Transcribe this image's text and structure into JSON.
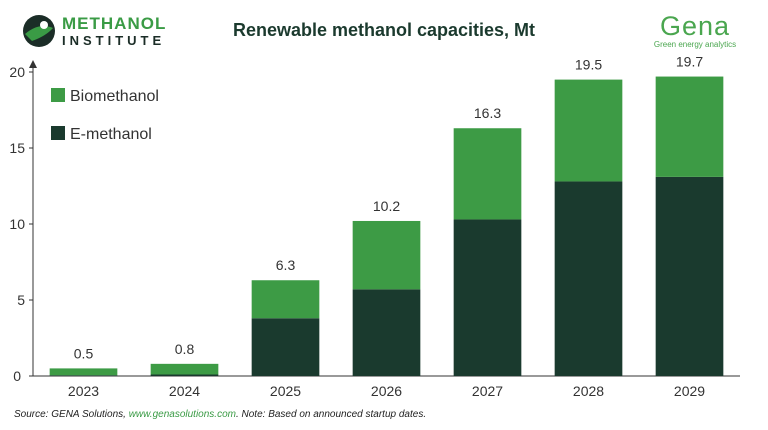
{
  "logos": {
    "left": {
      "line1": "METHANOL",
      "line2": "INSTITUTE"
    },
    "right": {
      "name": "Gena",
      "tagline": "Green energy analytics"
    }
  },
  "source_note": {
    "prefix": "Source: GENA Solutions, ",
    "link": "www.genasolutions.com",
    "suffix": ". Note: Based on announced startup dates."
  },
  "colors": {
    "biomethanol": "#3d9b45",
    "e_methanol": "#1a3a2e"
  },
  "chart_data": {
    "type": "bar",
    "stacked": true,
    "title": "Renewable methanol capacities, Mt",
    "categories": [
      "2023",
      "2024",
      "2025",
      "2026",
      "2027",
      "2028",
      "2029"
    ],
    "series": [
      {
        "name": "E-methanol",
        "values": [
          0.05,
          0.1,
          3.8,
          5.7,
          10.3,
          12.8,
          13.1
        ]
      },
      {
        "name": "Biomethanol",
        "values": [
          0.45,
          0.7,
          2.5,
          4.5,
          6.0,
          6.7,
          6.6
        ]
      }
    ],
    "totals": [
      "0.5",
      "0.8",
      "6.3",
      "10.2",
      "16.3",
      "19.5",
      "19.7"
    ],
    "ylim": [
      0,
      20
    ],
    "yticks": [
      "0",
      "5",
      "10",
      "15",
      "20"
    ],
    "legend": {
      "position": "top-left",
      "entries": [
        "Biomethanol",
        "E-methanol"
      ]
    },
    "grid": false
  }
}
